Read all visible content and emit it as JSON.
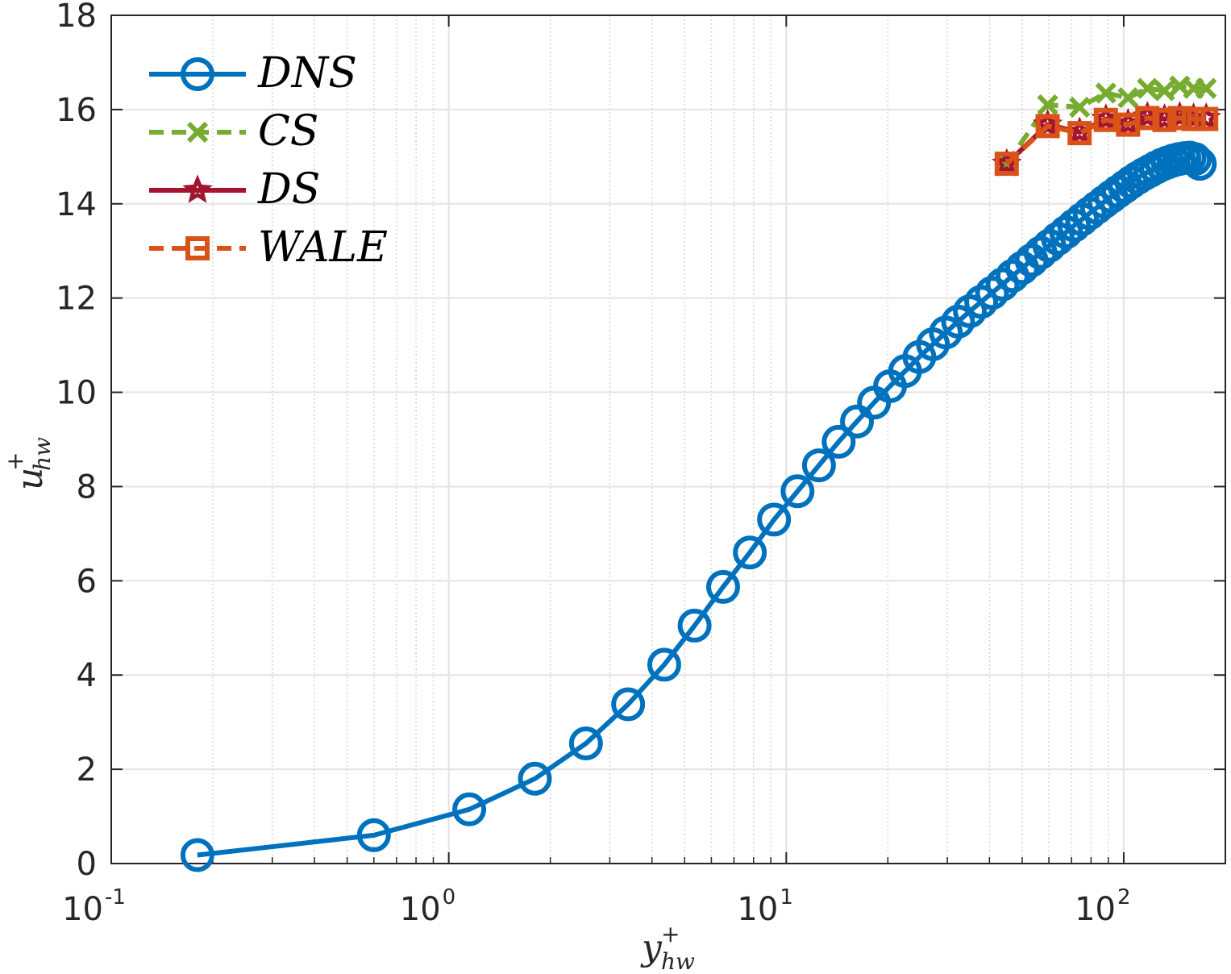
{
  "chart_data": {
    "type": "line",
    "title": "",
    "xscale": "log",
    "xlim": [
      0.1,
      200
    ],
    "ylim": [
      0,
      18
    ],
    "grid": true,
    "legend_position": "top-left",
    "xlabel": {
      "base": "y",
      "sup": "+",
      "sub": "hw"
    },
    "ylabel": {
      "base": "u",
      "sup": "+",
      "sub": "hw"
    },
    "xticks": [
      {
        "value": 0.1,
        "base": "10",
        "exp": "-1"
      },
      {
        "value": 1,
        "base": "10",
        "exp": "0"
      },
      {
        "value": 10,
        "base": "10",
        "exp": "1"
      },
      {
        "value": 100,
        "base": "10",
        "exp": "2"
      }
    ],
    "yticks": [
      {
        "value": 0,
        "label": "0"
      },
      {
        "value": 2,
        "label": "2"
      },
      {
        "value": 4,
        "label": "4"
      },
      {
        "value": 6,
        "label": "6"
      },
      {
        "value": 8,
        "label": "8"
      },
      {
        "value": 10,
        "label": "10"
      },
      {
        "value": 12,
        "label": "12"
      },
      {
        "value": 14,
        "label": "14"
      },
      {
        "value": 16,
        "label": "16"
      },
      {
        "value": 18,
        "label": "18"
      }
    ],
    "series": [
      {
        "name": "DNS",
        "color": "#0072BD",
        "marker": "circle",
        "dash": "solid",
        "x": [
          0.18,
          0.6,
          1.15,
          1.8,
          2.55,
          3.4,
          4.35,
          5.35,
          6.5,
          7.8,
          9.2,
          10.8,
          12.5,
          14.3,
          16.2,
          18.2,
          20.3,
          22.5,
          24.8,
          27.2,
          29.7,
          32.3,
          35.0,
          37.8,
          40.7,
          43.7,
          46.8,
          50.0,
          53.3,
          56.7,
          60.2,
          63.8,
          67.5,
          71.3,
          75.2,
          79.2,
          83.3,
          87.5,
          91.8,
          96.2,
          100.7,
          105.3,
          110.0,
          114.8,
          119.7,
          124.7,
          129.8,
          135.0,
          140.3,
          145.7,
          151.2,
          156.8,
          162.5,
          168.0
        ],
        "values": [
          0.18,
          0.6,
          1.15,
          1.8,
          2.55,
          3.38,
          4.22,
          5.05,
          5.87,
          6.6,
          7.3,
          7.9,
          8.45,
          8.95,
          9.38,
          9.78,
          10.13,
          10.45,
          10.75,
          11.02,
          11.27,
          11.5,
          11.72,
          11.92,
          12.11,
          12.29,
          12.47,
          12.64,
          12.8,
          12.96,
          13.11,
          13.26,
          13.4,
          13.54,
          13.67,
          13.8,
          13.92,
          14.04,
          14.15,
          14.26,
          14.36,
          14.46,
          14.55,
          14.63,
          14.7,
          14.77,
          14.83,
          14.88,
          14.92,
          14.95,
          14.97,
          14.98,
          14.95,
          14.85
        ]
      },
      {
        "name": "CS",
        "color": "#77AC30",
        "marker": "x",
        "dash": "dashed",
        "x": [
          45,
          59.5,
          74,
          88.5,
          103,
          117.5,
          132,
          146.5,
          161,
          175.5
        ],
        "values": [
          14.85,
          16.1,
          16.05,
          16.35,
          16.25,
          16.45,
          16.4,
          16.5,
          16.45,
          16.45
        ]
      },
      {
        "name": "DS",
        "color": "#A2142F",
        "marker": "star",
        "dash": "solid",
        "x": [
          45,
          59.5,
          74,
          88.5,
          103,
          117.5,
          132,
          146.5,
          161,
          175.5
        ],
        "values": [
          14.85,
          15.68,
          15.52,
          15.8,
          15.7,
          15.85,
          15.8,
          15.85,
          15.82,
          15.82
        ]
      },
      {
        "name": "WALE",
        "color": "#D95319",
        "marker": "square",
        "dash": "dashed",
        "x": [
          45,
          59.5,
          74,
          88.5,
          103,
          117.5,
          132,
          146.5,
          161,
          175.5
        ],
        "values": [
          14.85,
          15.65,
          15.5,
          15.78,
          15.68,
          15.82,
          15.78,
          15.82,
          15.8,
          15.8
        ]
      }
    ]
  }
}
